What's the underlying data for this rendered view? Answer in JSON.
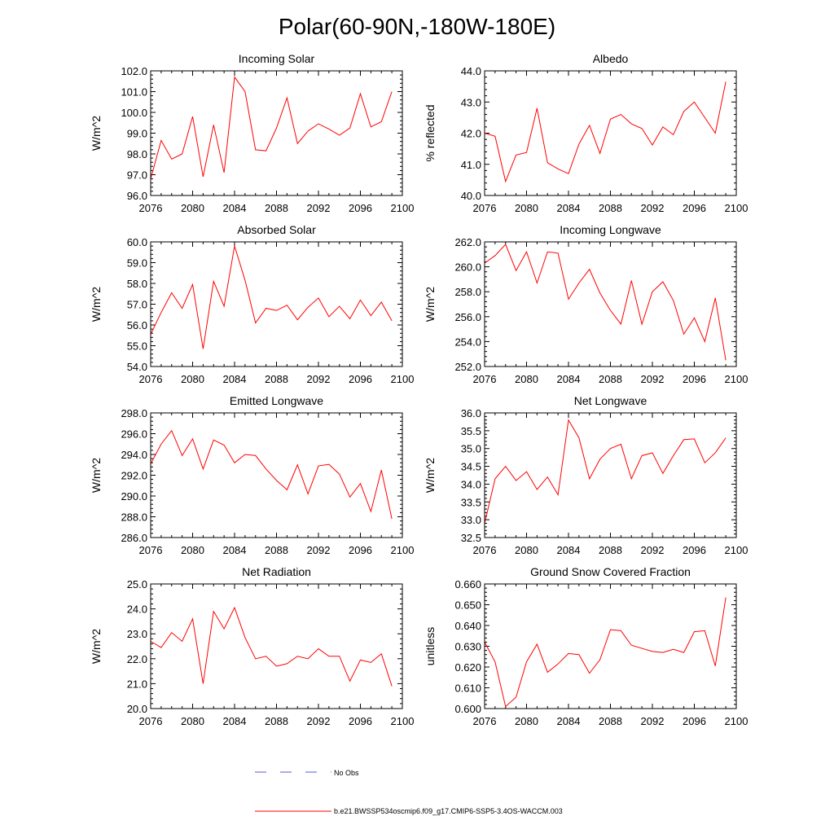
{
  "figure_title": "Polar(60-90N,-180W-180E)",
  "legend": {
    "obs_label": "No Obs",
    "obs_color": "#5a5adc",
    "model_label": "b.e21.BWSSP534oscmip6.f09_g17.CMIP6-SSP5-3.4OS-WACCM.003",
    "model_color": "#ff0000"
  },
  "chart_data": [
    {
      "type": "line",
      "title": "Incoming Solar",
      "ylabel": "W/m^2",
      "xlabel": "",
      "xlim": [
        2076,
        2100
      ],
      "xticks": [
        2076,
        2080,
        2084,
        2088,
        2092,
        2096,
        2100
      ],
      "ylim": [
        96.0,
        102.0
      ],
      "yticks": [
        "96.0",
        "97.0",
        "98.0",
        "99.0",
        "100.0",
        "101.0",
        "102.0"
      ],
      "x": [
        2076,
        2077,
        2078,
        2079,
        2080,
        2081,
        2082,
        2083,
        2084,
        2085,
        2086,
        2087,
        2088,
        2089,
        2090,
        2091,
        2092,
        2093,
        2094,
        2095,
        2096,
        2097,
        2098,
        2099
      ],
      "series": [
        {
          "name": "b.e21.BWSSP534oscmip6.f09_g17.CMIP6-SSP5-3.4OS-WACCM.003",
          "values": [
            96.8,
            98.65,
            97.75,
            98.0,
            99.8,
            96.9,
            99.4,
            97.1,
            101.7,
            101.0,
            98.2,
            98.15,
            99.25,
            100.7,
            98.5,
            99.1,
            99.45,
            99.2,
            98.9,
            99.25,
            100.9,
            99.3,
            99.55,
            101.0
          ]
        }
      ]
    },
    {
      "type": "line",
      "title": "Albedo",
      "ylabel": "% reflected",
      "xlabel": "",
      "xlim": [
        2076,
        2100
      ],
      "xticks": [
        2076,
        2080,
        2084,
        2088,
        2092,
        2096,
        2100
      ],
      "ylim": [
        40.0,
        44.0
      ],
      "yticks": [
        "40.0",
        "41.0",
        "42.0",
        "43.0",
        "44.0"
      ],
      "x": [
        2076,
        2077,
        2078,
        2079,
        2080,
        2081,
        2082,
        2083,
        2084,
        2085,
        2086,
        2087,
        2088,
        2089,
        2090,
        2091,
        2092,
        2093,
        2094,
        2095,
        2096,
        2097,
        2098,
        2099
      ],
      "series": [
        {
          "name": "b.e21.BWSSP534oscmip6.f09_g17.CMIP6-SSP5-3.4OS-WACCM.003",
          "values": [
            42.0,
            41.9,
            40.45,
            41.3,
            41.38,
            42.8,
            41.05,
            40.85,
            40.7,
            41.65,
            42.25,
            41.35,
            42.45,
            42.6,
            42.3,
            42.15,
            41.62,
            42.2,
            41.95,
            42.7,
            43.0,
            42.5,
            42.0,
            43.65
          ]
        }
      ]
    },
    {
      "type": "line",
      "title": "Absorbed Solar",
      "ylabel": "W/m^2",
      "xlabel": "",
      "xlim": [
        2076,
        2100
      ],
      "xticks": [
        2076,
        2080,
        2084,
        2088,
        2092,
        2096,
        2100
      ],
      "ylim": [
        54.0,
        60.0
      ],
      "yticks": [
        "54.0",
        "55.0",
        "56.0",
        "57.0",
        "58.0",
        "59.0",
        "60.0"
      ],
      "x": [
        2076,
        2077,
        2078,
        2079,
        2080,
        2081,
        2082,
        2083,
        2084,
        2085,
        2086,
        2087,
        2088,
        2089,
        2090,
        2091,
        2092,
        2093,
        2094,
        2095,
        2096,
        2097,
        2098,
        2099
      ],
      "series": [
        {
          "name": "b.e21.BWSSP534oscmip6.f09_g17.CMIP6-SSP5-3.4OS-WACCM.003",
          "values": [
            55.55,
            56.6,
            57.55,
            56.8,
            57.95,
            54.85,
            58.1,
            56.9,
            59.8,
            58.15,
            56.1,
            56.8,
            56.7,
            56.95,
            56.25,
            56.85,
            57.3,
            56.4,
            56.9,
            56.3,
            57.2,
            56.45,
            57.1,
            56.2
          ]
        }
      ]
    },
    {
      "type": "line",
      "title": "Incoming Longwave",
      "ylabel": "W/m^2",
      "xlabel": "",
      "xlim": [
        2076,
        2100
      ],
      "xticks": [
        2076,
        2080,
        2084,
        2088,
        2092,
        2096,
        2100
      ],
      "ylim": [
        252.0,
        262.0
      ],
      "yticks": [
        "252.0",
        "254.0",
        "256.0",
        "258.0",
        "260.0",
        "262.0"
      ],
      "x": [
        2076,
        2077,
        2078,
        2079,
        2080,
        2081,
        2082,
        2083,
        2084,
        2085,
        2086,
        2087,
        2088,
        2089,
        2090,
        2091,
        2092,
        2093,
        2094,
        2095,
        2096,
        2097,
        2098,
        2099
      ],
      "series": [
        {
          "name": "b.e21.BWSSP534oscmip6.f09_g17.CMIP6-SSP5-3.4OS-WACCM.003",
          "values": [
            260.3,
            260.9,
            261.8,
            259.7,
            261.2,
            258.7,
            261.2,
            261.1,
            257.4,
            258.7,
            259.8,
            257.9,
            256.5,
            255.4,
            258.9,
            255.4,
            258.0,
            258.8,
            257.3,
            254.6,
            255.9,
            254.0,
            257.5,
            252.5
          ]
        }
      ]
    },
    {
      "type": "line",
      "title": "Emitted Longwave",
      "ylabel": "W/m^2",
      "xlabel": "",
      "xlim": [
        2076,
        2100
      ],
      "xticks": [
        2076,
        2080,
        2084,
        2088,
        2092,
        2096,
        2100
      ],
      "ylim": [
        286.0,
        298.0
      ],
      "yticks": [
        "286.0",
        "288.0",
        "290.0",
        "292.0",
        "294.0",
        "296.0",
        "298.0"
      ],
      "x": [
        2076,
        2077,
        2078,
        2079,
        2080,
        2081,
        2082,
        2083,
        2084,
        2085,
        2086,
        2087,
        2088,
        2089,
        2090,
        2091,
        2092,
        2093,
        2094,
        2095,
        2096,
        2097,
        2098,
        2099
      ],
      "series": [
        {
          "name": "b.e21.BWSSP534oscmip6.f09_g17.CMIP6-SSP5-3.4OS-WACCM.003",
          "values": [
            293.1,
            295.0,
            296.3,
            293.9,
            295.5,
            292.6,
            295.4,
            294.9,
            293.2,
            294.0,
            293.9,
            292.6,
            291.5,
            290.6,
            293.0,
            290.2,
            292.9,
            293.05,
            292.1,
            289.9,
            291.2,
            288.5,
            292.5,
            287.8
          ]
        }
      ]
    },
    {
      "type": "line",
      "title": "Net Longwave",
      "ylabel": "W/m^2",
      "xlabel": "",
      "xlim": [
        2076,
        2100
      ],
      "xticks": [
        2076,
        2080,
        2084,
        2088,
        2092,
        2096,
        2100
      ],
      "ylim": [
        32.5,
        36.0
      ],
      "yticks": [
        "32.5",
        "33.0",
        "33.5",
        "34.0",
        "34.5",
        "35.0",
        "35.5",
        "36.0"
      ],
      "x": [
        2076,
        2077,
        2078,
        2079,
        2080,
        2081,
        2082,
        2083,
        2084,
        2085,
        2086,
        2087,
        2088,
        2089,
        2090,
        2091,
        2092,
        2093,
        2094,
        2095,
        2096,
        2097,
        2098,
        2099
      ],
      "series": [
        {
          "name": "b.e21.BWSSP534oscmip6.f09_g17.CMIP6-SSP5-3.4OS-WACCM.003",
          "values": [
            32.9,
            34.15,
            34.5,
            34.1,
            34.35,
            33.85,
            34.2,
            33.7,
            35.8,
            35.3,
            34.15,
            34.7,
            35.0,
            35.12,
            34.15,
            34.8,
            34.88,
            34.3,
            34.8,
            35.25,
            35.27,
            34.6,
            34.88,
            35.3
          ]
        }
      ]
    },
    {
      "type": "line",
      "title": "Net Radiation",
      "ylabel": "W/m^2",
      "xlabel": "",
      "xlim": [
        2076,
        2100
      ],
      "xticks": [
        2076,
        2080,
        2084,
        2088,
        2092,
        2096,
        2100
      ],
      "ylim": [
        20.0,
        25.0
      ],
      "yticks": [
        "20.0",
        "21.0",
        "22.0",
        "23.0",
        "24.0",
        "25.0"
      ],
      "x": [
        2076,
        2077,
        2078,
        2079,
        2080,
        2081,
        2082,
        2083,
        2084,
        2085,
        2086,
        2087,
        2088,
        2089,
        2090,
        2091,
        2092,
        2093,
        2094,
        2095,
        2096,
        2097,
        2098,
        2099
      ],
      "series": [
        {
          "name": "b.e21.BWSSP534oscmip6.f09_g17.CMIP6-SSP5-3.4OS-WACCM.003",
          "values": [
            22.7,
            22.45,
            23.05,
            22.7,
            23.6,
            21.0,
            23.9,
            23.2,
            24.05,
            22.85,
            22.0,
            22.1,
            21.7,
            21.8,
            22.1,
            22.0,
            22.4,
            22.1,
            22.1,
            21.1,
            21.95,
            21.85,
            22.2,
            20.9
          ]
        }
      ]
    },
    {
      "type": "line",
      "title": "Ground Snow Covered Fraction",
      "ylabel": "unitless",
      "xlabel": "",
      "xlim": [
        2076,
        2100
      ],
      "xticks": [
        2076,
        2080,
        2084,
        2088,
        2092,
        2096,
        2100
      ],
      "ylim": [
        0.6,
        0.66
      ],
      "yticks": [
        "0.600",
        "0.610",
        "0.620",
        "0.630",
        "0.640",
        "0.650",
        "0.660"
      ],
      "x": [
        2076,
        2077,
        2078,
        2079,
        2080,
        2081,
        2082,
        2083,
        2084,
        2085,
        2086,
        2087,
        2088,
        2089,
        2090,
        2091,
        2092,
        2093,
        2094,
        2095,
        2096,
        2097,
        2098,
        2099
      ],
      "series": [
        {
          "name": "b.e21.BWSSP534oscmip6.f09_g17.CMIP6-SSP5-3.4OS-WACCM.003",
          "values": [
            0.632,
            0.6225,
            0.601,
            0.6055,
            0.6225,
            0.631,
            0.6175,
            0.6215,
            0.6265,
            0.626,
            0.617,
            0.6235,
            0.638,
            0.6375,
            0.6305,
            0.629,
            0.6275,
            0.627,
            0.6285,
            0.627,
            0.637,
            0.6375,
            0.6205,
            0.6535
          ]
        }
      ]
    }
  ]
}
